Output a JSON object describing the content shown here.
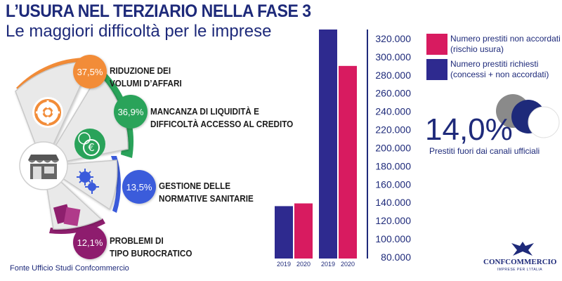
{
  "title": "L’USURA NEL TERZIARIO NELLA FASE 3",
  "subtitle": "Le maggiori difficoltà per le imprese",
  "source": "Fonte Ufficio Studi Confcommercio",
  "causes": [
    {
      "pct": "37,5%",
      "label": "RIDUZIONE DEI\nVOLUMI D’AFFARI",
      "color": "#f28c38",
      "icon": "decreasing-pie-icon"
    },
    {
      "pct": "36,9%",
      "label": "MANCANZA DI LIQUIDITÀ E\nDIFFICOLTÀ ACCESSO AL CREDITO",
      "color": "#2aa35a",
      "icon": "euro-coins-icon"
    },
    {
      "pct": "13,5%",
      "label": "GESTIONE DELLE\nNORMATIVE SANITARIE",
      "color": "#3b5bdb",
      "icon": "virus-icon"
    },
    {
      "pct": "12,1%",
      "label": "PROBLEMI DI\nTIPO BUROCRATICO",
      "color": "#8e1f6e",
      "icon": "documents-icon"
    }
  ],
  "chart_data": {
    "type": "bar",
    "categories": [
      "2019",
      "2020",
      "2019",
      "2020"
    ],
    "series": [
      {
        "name": "Numero prestiti richiesti (concessi + non accordati)",
        "values": [
          136000,
          null,
          330000,
          null
        ],
        "color": "#2e2a8f"
      },
      {
        "name": "Numero prestiti non accordati (rischio usura)",
        "values": [
          null,
          139000,
          null,
          290000
        ],
        "color": "#d81b60"
      }
    ],
    "ylim": [
      80000,
      330000
    ],
    "yticks": [
      "80.000",
      "100.000",
      "120.000",
      "140.000",
      "160.000",
      "180.000",
      "200.000",
      "220.000",
      "240.000",
      "260.000",
      "280.000",
      "300.000",
      "320.000"
    ],
    "ytick_values": [
      80000,
      100000,
      120000,
      140000,
      160000,
      180000,
      200000,
      220000,
      240000,
      260000,
      280000,
      300000,
      320000
    ],
    "legend_position": "right"
  },
  "legend": [
    {
      "label": "Numero prestiti non accordati\n(rischio usura)",
      "color": "#d81b60"
    },
    {
      "label": "Numero prestiti richiesti\n(concessi + non accordati)",
      "color": "#2e2a8f"
    }
  ],
  "highlight": {
    "value": "14,0%",
    "label": "Prestiti fuori dai canali ufficiali"
  },
  "logo": {
    "name": "CONFCOMMERCIO",
    "tagline": "IMPRESE PER L’ITALIA"
  }
}
